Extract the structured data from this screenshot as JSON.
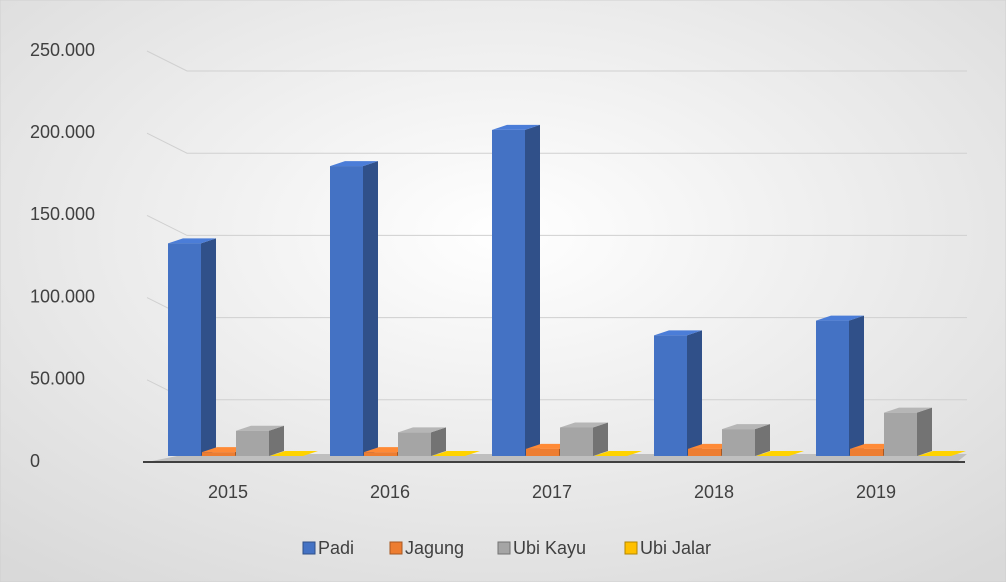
{
  "chart_data": {
    "type": "bar3d",
    "categories": [
      "2015",
      "2016",
      "2017",
      "2018",
      "2019"
    ],
    "series": [
      {
        "name": "Padi",
        "color": "#4472c4",
        "values": [
          133000,
          180000,
          202000,
          77000,
          86000
        ]
      },
      {
        "name": "Jagung",
        "color": "#ed7d31",
        "values": [
          6000,
          6000,
          8000,
          8000,
          8000
        ]
      },
      {
        "name": "Ubi Kayu",
        "color": "#a5a5a5",
        "values": [
          19000,
          18000,
          21000,
          20000,
          30000
        ]
      },
      {
        "name": "Ubi Jalar",
        "color": "#ffc000",
        "values": [
          2000,
          2000,
          2000,
          2000,
          2000
        ]
      }
    ],
    "ylim": [
      0,
      250000
    ],
    "yticks": [
      0,
      {
        "value": 50000,
        "label": "50.000"
      },
      {
        "value": 100000,
        "label": "100.000"
      },
      {
        "value": 150000,
        "label": "150.000"
      },
      {
        "value": 200000,
        "label": "200.000"
      },
      {
        "value": 250000,
        "label": "250.000"
      }
    ],
    "grid": true,
    "legend": "bottom"
  }
}
